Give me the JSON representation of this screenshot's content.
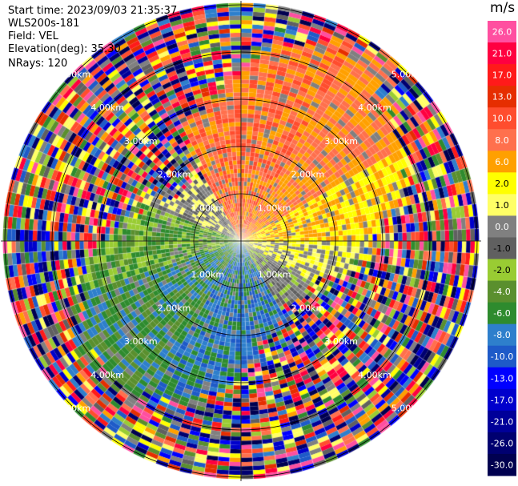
{
  "header": {
    "start_time": "Start time: 2023/09/03 21:35:37",
    "site": "WLS200s-181",
    "field": "Field: VEL",
    "elevation": "Elevation(deg): 35.30",
    "nrays": "NRays: 120"
  },
  "colorbar": {
    "unit": "m/s",
    "ticks": [
      "26.0",
      "21.0",
      "17.0",
      "13.0",
      "10.0",
      "8.0",
      "6.0",
      "2.0",
      "1.0",
      "0.0",
      "-1.0",
      "-2.0",
      "-4.0",
      "-6.0",
      "-8.0",
      "-10.0",
      "-13.0",
      "-17.0",
      "-21.0",
      "-26.0",
      "-30.0"
    ],
    "colors": [
      "#ff4fa0",
      "#ff0040",
      "#ff1a1a",
      "#e62e00",
      "#ff4d2e",
      "#ff704d",
      "#ffa000",
      "#ffff00",
      "#ffff66",
      "#808080",
      "#606060",
      "#99cc33",
      "#5a8f2e",
      "#2e8b2e",
      "#2e7fcc",
      "#1e5ac8",
      "#0000ff",
      "#0000cc",
      "#000099",
      "#000070",
      "#000050"
    ]
  },
  "chart_data": {
    "type": "heatmap",
    "projection": "polar (PPI scan)",
    "field": "VEL",
    "unit": "m/s",
    "nrays": 120,
    "range_ring_labels": [
      "1.00km",
      "2.00km",
      "3.00km",
      "4.00km",
      "5.00km"
    ],
    "range_rings_km": [
      1,
      2,
      3,
      4,
      5
    ],
    "value_range": [
      -30,
      26
    ],
    "sectors": [
      {
        "direction": "north",
        "dominant_velocity": "6.0 to 13.0"
      },
      {
        "direction": "east",
        "dominant_velocity": "1.0 to 2.0"
      },
      {
        "direction": "south",
        "dominant_velocity": "-8.0 to -10.0"
      },
      {
        "direction": "west",
        "dominant_velocity": "-4.0 to -6.0"
      }
    ]
  }
}
